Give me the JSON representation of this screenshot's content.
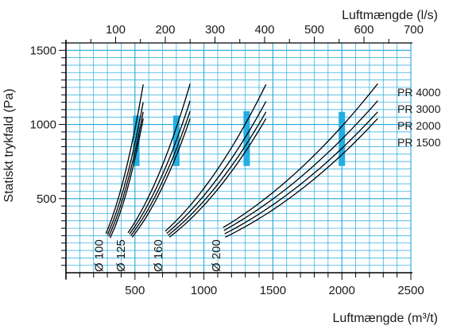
{
  "chart_data": {
    "type": "line",
    "title": "",
    "xlabel": "Luftmængde (m³/t)",
    "ylabel": "Statiskt trykfald (Pa)",
    "x2label": "Luftmængde (l/s)",
    "xlim": [
      0,
      2500
    ],
    "ylim": [
      0,
      1550
    ],
    "x_ticks": [
      500,
      1000,
      1500,
      2000,
      2500
    ],
    "y_ticks": [
      500,
      1000,
      1500
    ],
    "x2_ticks": [
      100,
      200,
      300,
      400,
      500,
      600,
      700
    ],
    "grid": true,
    "colors": {
      "grid": "#21a8dc",
      "line": "#000000",
      "band": "#22aee2"
    },
    "duct_labels": [
      "Ø 100",
      "Ø 125",
      "Ø 160",
      "Ø 200"
    ],
    "pressure_labels": [
      "PR 4000",
      "PR 3000",
      "PR 2000",
      "PR 1500"
    ],
    "groups": [
      {
        "duct": "Ø 100",
        "band": {
          "x": 510,
          "y_range": [
            720,
            1060
          ]
        },
        "series": [
          {
            "x": [
              290,
              560
            ],
            "y": [
              265,
              1270
            ]
          },
          {
            "x": [
              300,
              560
            ],
            "y": [
              255,
              1150
            ]
          },
          {
            "x": [
              310,
              560
            ],
            "y": [
              245,
              1085
            ]
          },
          {
            "x": [
              320,
              560
            ],
            "y": [
              235,
              1040
            ]
          }
        ]
      },
      {
        "duct": "Ø 125",
        "band": {
          "x": 800,
          "y_range": [
            720,
            1060
          ]
        },
        "series": [
          {
            "x": [
              450,
              900
            ],
            "y": [
              270,
              1275
            ]
          },
          {
            "x": [
              460,
              900
            ],
            "y": [
              260,
              1160
            ]
          },
          {
            "x": [
              470,
              900
            ],
            "y": [
              250,
              1090
            ]
          },
          {
            "x": [
              480,
              900
            ],
            "y": [
              240,
              1040
            ]
          }
        ]
      },
      {
        "duct": "Ø 160",
        "band": {
          "x": 1310,
          "y_range": [
            720,
            1090
          ]
        },
        "series": [
          {
            "x": [
              720,
              1450
            ],
            "y": [
              280,
              1270
            ]
          },
          {
            "x": [
              730,
              1450
            ],
            "y": [
              265,
              1155
            ]
          },
          {
            "x": [
              740,
              1450
            ],
            "y": [
              252,
              1085
            ]
          },
          {
            "x": [
              750,
              1450
            ],
            "y": [
              240,
              1040
            ]
          }
        ]
      },
      {
        "duct": "Ø 200",
        "band": {
          "x": 2000,
          "y_range": [
            720,
            1085
          ]
        },
        "series": [
          {
            "x": [
              1140,
              2260
            ],
            "y": [
              305,
              1275
            ]
          },
          {
            "x": [
              1145,
              2260
            ],
            "y": [
              285,
              1160
            ]
          },
          {
            "x": [
              1150,
              2260
            ],
            "y": [
              262,
              1085
            ]
          },
          {
            "x": [
              1155,
              2260
            ],
            "y": [
              240,
              1040
            ]
          }
        ]
      }
    ]
  }
}
